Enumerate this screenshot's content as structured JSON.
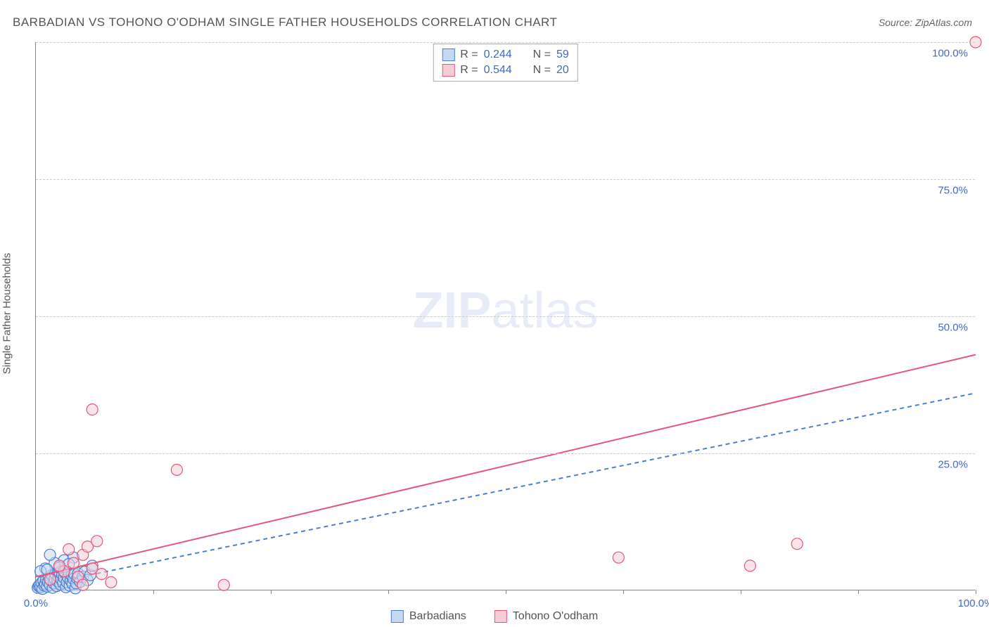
{
  "chart": {
    "type": "scatter",
    "title": "BARBADIAN VS TOHONO O'ODHAM SINGLE FATHER HOUSEHOLDS CORRELATION CHART",
    "source": "Source: ZipAtlas.com",
    "ylabel": "Single Father Households",
    "background_color": "#ffffff",
    "grid_color": "#cccccc",
    "axis_color": "#888888",
    "text_color": "#555555",
    "value_color": "#4169c8",
    "xlim": [
      0,
      100
    ],
    "ylim": [
      0,
      100
    ],
    "yticks": [
      25,
      50,
      75,
      100
    ],
    "ytick_labels": [
      "25.0%",
      "50.0%",
      "75.0%",
      "100.0%"
    ],
    "xticks": [
      0,
      12.5,
      25,
      37.5,
      50,
      62.5,
      75,
      87.5,
      100
    ],
    "xtick_labels_shown": {
      "0": "0.0%",
      "100": "100.0%"
    },
    "watermark": {
      "bold": "ZIP",
      "rest": "atlas"
    },
    "title_fontsize": 17,
    "label_fontsize": 15,
    "legend_fontsize": 16,
    "marker_radius": 8,
    "marker_stroke_width": 1.2,
    "line_width": 2,
    "dash_pattern": "6,5",
    "series": [
      {
        "name": "Barbadians",
        "fill": "#c7d8f2",
        "stroke": "#4d7fd1",
        "swatch_fill": "#c7d8f2",
        "swatch_stroke": "#4d7fd1",
        "R": "0.244",
        "N": "59",
        "regression": {
          "x1": 0,
          "y1": 0.8,
          "x2": 100,
          "y2": 36,
          "dashed": true,
          "color": "#4d7fd1"
        },
        "points": [
          [
            0.2,
            0.5
          ],
          [
            0.3,
            0.8
          ],
          [
            0.4,
            1.0
          ],
          [
            0.5,
            0.6
          ],
          [
            0.6,
            1.4
          ],
          [
            0.7,
            0.3
          ],
          [
            0.8,
            1.8
          ],
          [
            0.9,
            0.9
          ],
          [
            1.0,
            1.2
          ],
          [
            1.1,
            2.0
          ],
          [
            1.2,
            0.7
          ],
          [
            1.3,
            1.5
          ],
          [
            1.4,
            2.4
          ],
          [
            1.5,
            1.0
          ],
          [
            1.6,
            1.9
          ],
          [
            1.7,
            2.8
          ],
          [
            1.8,
            0.5
          ],
          [
            1.9,
            1.3
          ],
          [
            2.0,
            2.1
          ],
          [
            2.1,
            3.0
          ],
          [
            2.2,
            0.8
          ],
          [
            2.3,
            1.7
          ],
          [
            2.4,
            2.5
          ],
          [
            2.5,
            3.4
          ],
          [
            2.6,
            1.1
          ],
          [
            2.7,
            2.0
          ],
          [
            2.8,
            2.9
          ],
          [
            2.9,
            1.4
          ],
          [
            3.0,
            2.3
          ],
          [
            3.1,
            3.2
          ],
          [
            3.2,
            0.6
          ],
          [
            3.3,
            1.5
          ],
          [
            3.4,
            2.4
          ],
          [
            3.5,
            3.3
          ],
          [
            3.6,
            0.9
          ],
          [
            3.7,
            1.8
          ],
          [
            3.8,
            2.7
          ],
          [
            3.9,
            1.2
          ],
          [
            4.0,
            2.1
          ],
          [
            4.1,
            3.0
          ],
          [
            4.2,
            0.4
          ],
          [
            4.3,
            1.3
          ],
          [
            4.4,
            2.2
          ],
          [
            4.5,
            3.1
          ],
          [
            4.7,
            1.6
          ],
          [
            5.0,
            2.5
          ],
          [
            5.2,
            3.4
          ],
          [
            5.5,
            1.9
          ],
          [
            5.8,
            2.8
          ],
          [
            6.0,
            4.5
          ],
          [
            1.0,
            4.0
          ],
          [
            2.0,
            5.0
          ],
          [
            3.0,
            5.5
          ],
          [
            4.0,
            6.0
          ],
          [
            1.5,
            6.5
          ],
          [
            2.5,
            4.2
          ],
          [
            0.5,
            3.5
          ],
          [
            1.2,
            3.8
          ],
          [
            3.5,
            4.8
          ]
        ]
      },
      {
        "name": "Tohono O'odham",
        "fill": "#f4cdd7",
        "stroke": "#e6567a",
        "swatch_fill": "#f4cdd7",
        "swatch_stroke": "#e6567a",
        "R": "0.544",
        "N": "20",
        "regression": {
          "x1": 0,
          "y1": 2.5,
          "x2": 100,
          "y2": 43,
          "dashed": false,
          "color": "#e6567a"
        },
        "points": [
          [
            1.5,
            2.0
          ],
          [
            3.0,
            3.5
          ],
          [
            4.0,
            5.0
          ],
          [
            5.0,
            6.5
          ],
          [
            5.5,
            8.0
          ],
          [
            6.0,
            4.0
          ],
          [
            6.5,
            9.0
          ],
          [
            7.0,
            3.0
          ],
          [
            8.0,
            1.5
          ],
          [
            3.5,
            7.5
          ],
          [
            4.5,
            2.5
          ],
          [
            20.0,
            1.0
          ],
          [
            6.0,
            33.0
          ],
          [
            15.0,
            22.0
          ],
          [
            62.0,
            6.0
          ],
          [
            76.0,
            4.5
          ],
          [
            81.0,
            8.5
          ],
          [
            100.0,
            100.0
          ],
          [
            2.5,
            4.5
          ],
          [
            5.0,
            1.0
          ]
        ]
      }
    ]
  }
}
